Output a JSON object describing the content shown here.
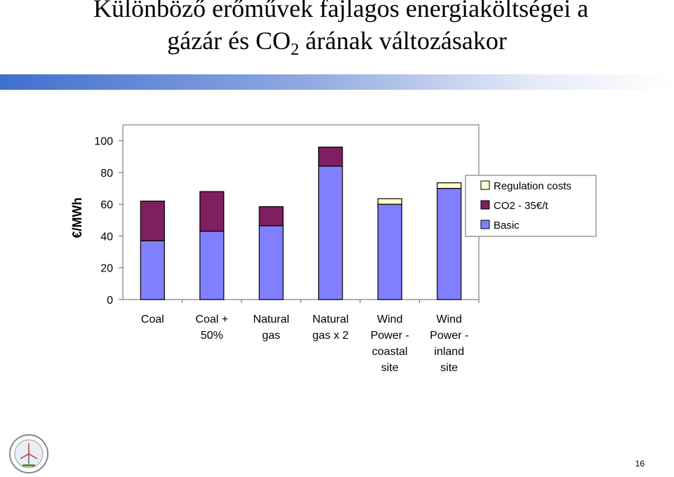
{
  "slide": {
    "title_line1": "Különböző erőművek fajlagos energiaköltségei a",
    "title_line2_a": "gázár és CO",
    "title_line2_sub": "2",
    "title_line2_b": " árának változásakor",
    "page_number": "16"
  },
  "chart_data": {
    "type": "bar",
    "stacked": true,
    "categories": [
      [
        "Coal"
      ],
      [
        "Coal +",
        "50%"
      ],
      [
        "Natural",
        "gas"
      ],
      [
        "Natural",
        "gas x 2"
      ],
      [
        "Wind",
        "Power -",
        "coastal",
        "site"
      ],
      [
        "Wind",
        "Power -",
        "inland",
        "site"
      ]
    ],
    "series": [
      {
        "name": "Basic",
        "color": "#8080ff",
        "values": [
          37,
          43,
          46.5,
          84,
          60,
          70
        ]
      },
      {
        "name": "CO2 - 35€/t",
        "color": "#7f1f5f",
        "values": [
          25,
          25,
          12,
          12,
          0,
          0
        ]
      },
      {
        "name": "Regulation costs",
        "color": "#ffffcc",
        "values": [
          0,
          0,
          0,
          0,
          3.5,
          3.5
        ]
      }
    ],
    "ylabel": "€/MWh",
    "yticks": [
      0,
      20,
      40,
      60,
      80,
      100
    ],
    "ylim": [
      0,
      110
    ],
    "legend_order": [
      "Regulation costs",
      "CO2 - 35€/t",
      "Basic"
    ],
    "legend_position": "right"
  }
}
